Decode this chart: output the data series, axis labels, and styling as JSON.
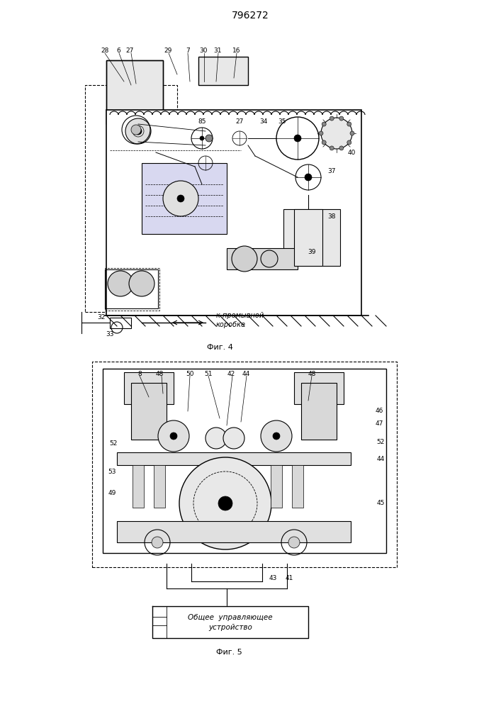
{
  "patent_number": "796272",
  "fig4_label": "Фиг. 4",
  "fig5_label": "Фиг. 5",
  "bg_color": "#ffffff",
  "line_color": "#000000",
  "line_width": 0.8,
  "control_box_text": [
    "Общее  управляющее",
    "устройство"
  ]
}
